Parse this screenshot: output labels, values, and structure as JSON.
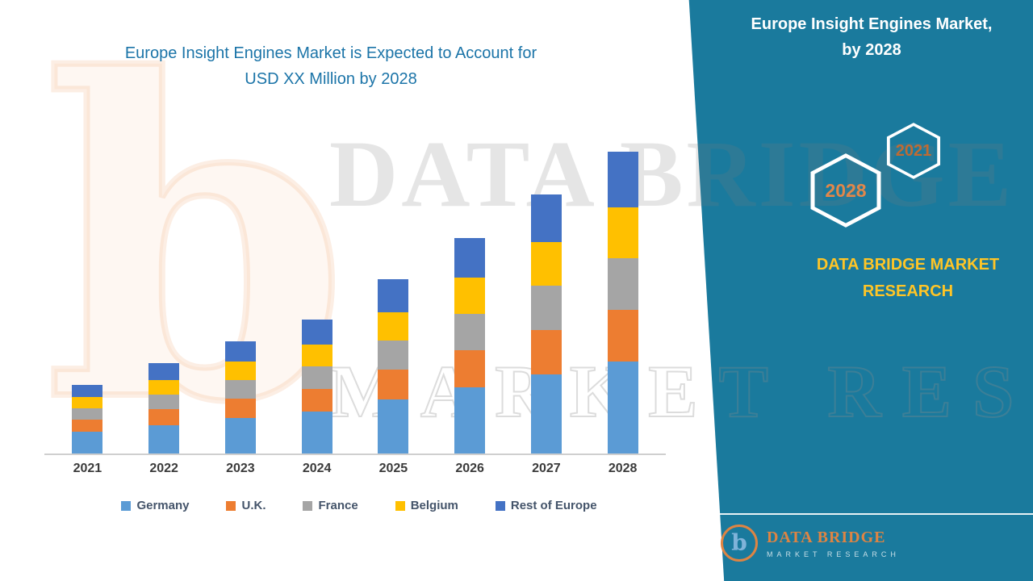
{
  "main_title": {
    "line1": "Europe Insight Engines Market is Expected to Account for",
    "line2": "USD XX Million by 2028",
    "color": "#1B74A8"
  },
  "panel": {
    "background": "#1A7A9D",
    "title_line1": "Europe Insight Engines Market,",
    "title_line2": "by 2028",
    "badges": [
      {
        "label": "2028",
        "text_color": "#E2874A"
      },
      {
        "label": "2021",
        "text_color": "#BF6B33"
      }
    ],
    "brand_line1": "DATA BRIDGE MARKET",
    "brand_line2": "RESEARCH",
    "brand_color": "#FFC526"
  },
  "logo": {
    "icon_letter": "b",
    "wordmark": "DATA BRIDGE",
    "tagline": "MARKET RESEARCH"
  },
  "watermark": {
    "letter": "b",
    "text1": "DATA BRIDGE",
    "text2": "MARKET RESEARCH"
  },
  "chart_data": {
    "type": "bar",
    "stacked": true,
    "title": "Europe Insight Engines Market is Expected to Account for USD XX Million by 2028",
    "categories": [
      "2021",
      "2022",
      "2023",
      "2024",
      "2025",
      "2026",
      "2027",
      "2028"
    ],
    "series": [
      {
        "name": "Germany",
        "color": "#5B9BD5",
        "values": [
          28,
          36,
          45,
          53,
          68,
          84,
          100,
          116
        ]
      },
      {
        "name": "U.K.",
        "color": "#ED7D31",
        "values": [
          15,
          20,
          24,
          29,
          38,
          47,
          56,
          66
        ]
      },
      {
        "name": "France",
        "color": "#A5A5A5",
        "values": [
          14,
          19,
          24,
          28,
          37,
          46,
          56,
          65
        ]
      },
      {
        "name": "Belgium",
        "color": "#FFC000",
        "values": [
          14,
          18,
          23,
          28,
          36,
          45,
          55,
          64
        ]
      },
      {
        "name": "Rest of Europe",
        "color": "#4472C4",
        "values": [
          16,
          21,
          26,
          31,
          41,
          51,
          61,
          71
        ]
      }
    ],
    "xlabel": "",
    "ylabel": "",
    "ylim": [
      0,
      400
    ],
    "grid": false,
    "legend_position": "bottom"
  }
}
